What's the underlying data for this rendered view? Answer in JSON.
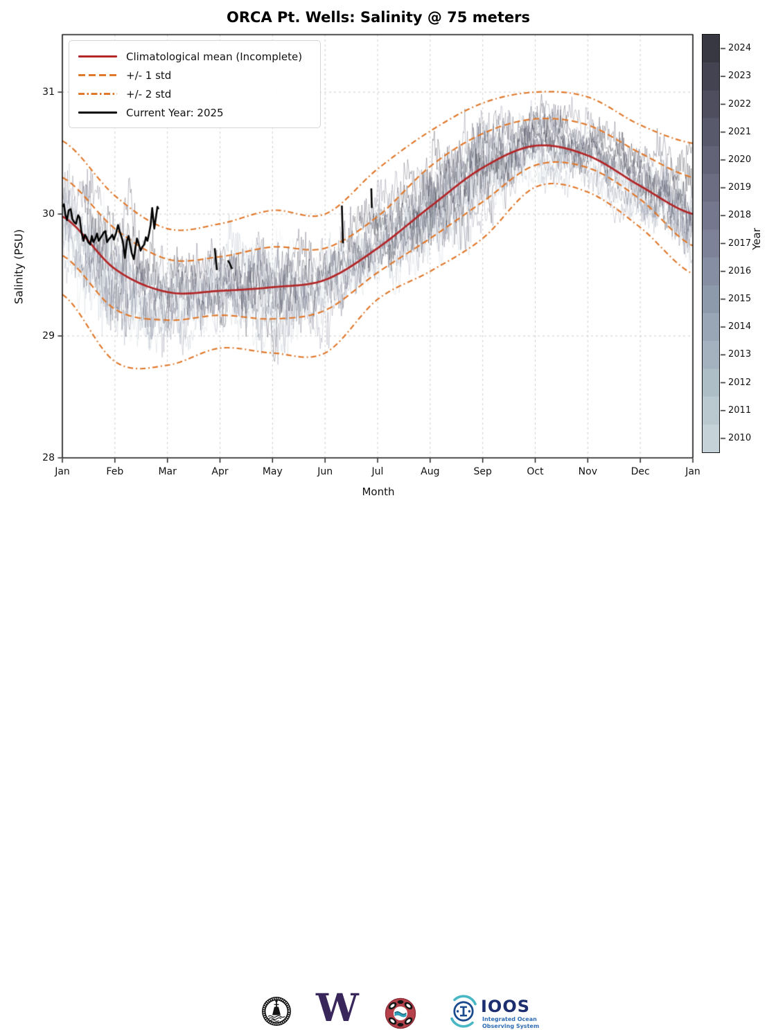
{
  "title": "ORCA Pt. Wells: Salinity @ 75 meters",
  "axes": {
    "x_label": "Month",
    "y_label": "Salinity (PSU)",
    "x_tick_labels": [
      "Jan",
      "Feb",
      "Mar",
      "Apr",
      "May",
      "Jun",
      "Jul",
      "Aug",
      "Sep",
      "Oct",
      "Nov",
      "Dec",
      "Jan"
    ],
    "y_tick_labels": [
      "28",
      "29",
      "30",
      "31"
    ]
  },
  "legend": {
    "items": [
      {
        "label": "Climatological mean (Incomplete)",
        "style": "solid",
        "color": "#b22728"
      },
      {
        "label": "+/- 1 std",
        "style": "dashed",
        "color": "#e0782b"
      },
      {
        "label": "+/- 2 std",
        "style": "dashdot",
        "color": "#e0782b"
      },
      {
        "label": "Current Year: 2025",
        "style": "solid",
        "color": "#000000"
      }
    ]
  },
  "colorbar": {
    "label": "Year",
    "years": [
      "2010",
      "2011",
      "2012",
      "2013",
      "2014",
      "2015",
      "2016",
      "2017",
      "2018",
      "2019",
      "2020",
      "2021",
      "2022",
      "2023",
      "2024"
    ],
    "colors": [
      "#c5d3d8",
      "#bac9d0",
      "#aebec7",
      "#a3b2be",
      "#98a6b5",
      "#8d9aac",
      "#858ea2",
      "#7d8298",
      "#75778e",
      "#6c6d83",
      "#636378",
      "#59596c",
      "#4e4e5f",
      "#434351",
      "#383843"
    ]
  },
  "styles": {
    "mean_color": "#b22728",
    "std_color": "#e0782b",
    "current_year_color": "#000000",
    "grid_color": "#cccccc"
  },
  "chart_data": {
    "type": "line",
    "title": "ORCA Pt. Wells: Salinity @ 75 meters",
    "xlabel": "Month",
    "ylabel": "Salinity (PSU)",
    "x_tick_labels": [
      "Jan",
      "Feb",
      "Mar",
      "Apr",
      "May",
      "Jun",
      "Jul",
      "Aug",
      "Sep",
      "Oct",
      "Nov",
      "Dec",
      "Jan"
    ],
    "y_ticks": [
      28,
      29,
      30,
      31
    ],
    "ylim": [
      28,
      31.47
    ],
    "grid": true,
    "legend_position": "upper left",
    "climatology": {
      "months": [
        0,
        1,
        2,
        3,
        4,
        5,
        6,
        7,
        8,
        9,
        10,
        11,
        12
      ],
      "mean": [
        29.98,
        29.55,
        29.36,
        29.37,
        29.4,
        29.46,
        29.72,
        30.06,
        30.38,
        30.56,
        30.48,
        30.23,
        30.0
      ],
      "plus_1_std": [
        30.3,
        29.88,
        29.63,
        29.65,
        29.73,
        29.72,
        29.98,
        30.39,
        30.66,
        30.78,
        30.73,
        30.5,
        30.3
      ],
      "minus_1_std": [
        29.66,
        29.22,
        29.13,
        29.17,
        29.14,
        29.21,
        29.52,
        29.8,
        30.1,
        30.4,
        30.38,
        30.12,
        29.74
      ],
      "plus_2_std": [
        30.6,
        30.15,
        29.88,
        29.92,
        30.03,
        30.0,
        30.37,
        30.68,
        30.91,
        31.0,
        30.96,
        30.73,
        30.58
      ],
      "minus_2_std": [
        29.34,
        28.79,
        28.76,
        28.9,
        28.86,
        28.86,
        29.3,
        29.53,
        29.8,
        30.22,
        30.18,
        29.89,
        29.51
      ]
    },
    "current_year_2025": {
      "label": "Current Year: 2025",
      "segments": [
        [
          [
            0.0,
            30.06
          ],
          [
            0.03,
            30.08
          ],
          [
            0.06,
            29.99
          ],
          [
            0.09,
            29.95
          ],
          [
            0.12,
            30.03
          ],
          [
            0.16,
            30.04
          ],
          [
            0.19,
            29.96
          ],
          [
            0.23,
            29.93
          ],
          [
            0.26,
            29.92
          ],
          [
            0.3,
            29.99
          ],
          [
            0.33,
            29.97
          ],
          [
            0.36,
            29.86
          ],
          [
            0.4,
            29.78
          ],
          [
            0.43,
            29.83
          ],
          [
            0.46,
            29.81
          ],
          [
            0.49,
            29.77
          ],
          [
            0.53,
            29.75
          ],
          [
            0.56,
            29.82
          ],
          [
            0.59,
            29.77
          ],
          [
            0.63,
            29.8
          ],
          [
            0.66,
            29.84
          ],
          [
            0.69,
            29.78
          ],
          [
            0.72,
            29.8
          ],
          [
            0.75,
            29.82
          ],
          [
            0.79,
            29.85
          ],
          [
            0.82,
            29.86
          ],
          [
            0.85,
            29.77
          ],
          [
            0.88,
            29.79
          ],
          [
            0.92,
            29.81
          ],
          [
            0.95,
            29.83
          ],
          [
            0.98,
            29.79
          ],
          [
            1.02,
            29.84
          ],
          [
            1.06,
            29.91
          ],
          [
            1.09,
            29.86
          ],
          [
            1.12,
            29.82
          ],
          [
            1.15,
            29.78
          ],
          [
            1.19,
            29.64
          ],
          [
            1.23,
            29.78
          ],
          [
            1.26,
            29.82
          ],
          [
            1.29,
            29.75
          ],
          [
            1.32,
            29.68
          ],
          [
            1.36,
            29.63
          ],
          [
            1.39,
            29.72
          ],
          [
            1.42,
            29.8
          ],
          [
            1.45,
            29.76
          ],
          [
            1.49,
            29.7
          ],
          [
            1.52,
            29.73
          ],
          [
            1.56,
            29.75
          ],
          [
            1.59,
            29.81
          ],
          [
            1.62,
            29.78
          ],
          [
            1.65,
            29.84
          ],
          [
            1.68,
            29.91
          ],
          [
            1.71,
            30.05
          ],
          [
            1.75,
            29.88
          ],
          [
            1.78,
            29.97
          ],
          [
            1.81,
            30.06
          ],
          [
            1.83,
            30.04
          ]
        ],
        [
          [
            2.9,
            29.72
          ],
          [
            2.94,
            29.54
          ]
        ],
        [
          [
            3.15,
            29.62
          ],
          [
            3.19,
            29.59
          ],
          [
            3.23,
            29.55
          ]
        ],
        [
          [
            5.32,
            30.07
          ],
          [
            5.33,
            29.92
          ],
          [
            5.34,
            29.76
          ]
        ],
        [
          [
            5.88,
            30.21
          ],
          [
            5.89,
            30.05
          ]
        ]
      ]
    },
    "historical_years": {
      "first": 2010,
      "last": 2024,
      "rendering": "faint noisy daily traces, one per year, colored by the Year colorbar"
    }
  },
  "footer": {
    "logos": [
      {
        "name": "orca-buoy-logo"
      },
      {
        "name": "uw-logo",
        "text": "W",
        "color": "#39275b"
      },
      {
        "name": "tribal-orca-seal-logo"
      },
      {
        "name": "ioos-logo",
        "title": "IOOS",
        "subtitle_line1": "Integrated  Ocean",
        "subtitle_line2": "Observing System"
      }
    ]
  }
}
